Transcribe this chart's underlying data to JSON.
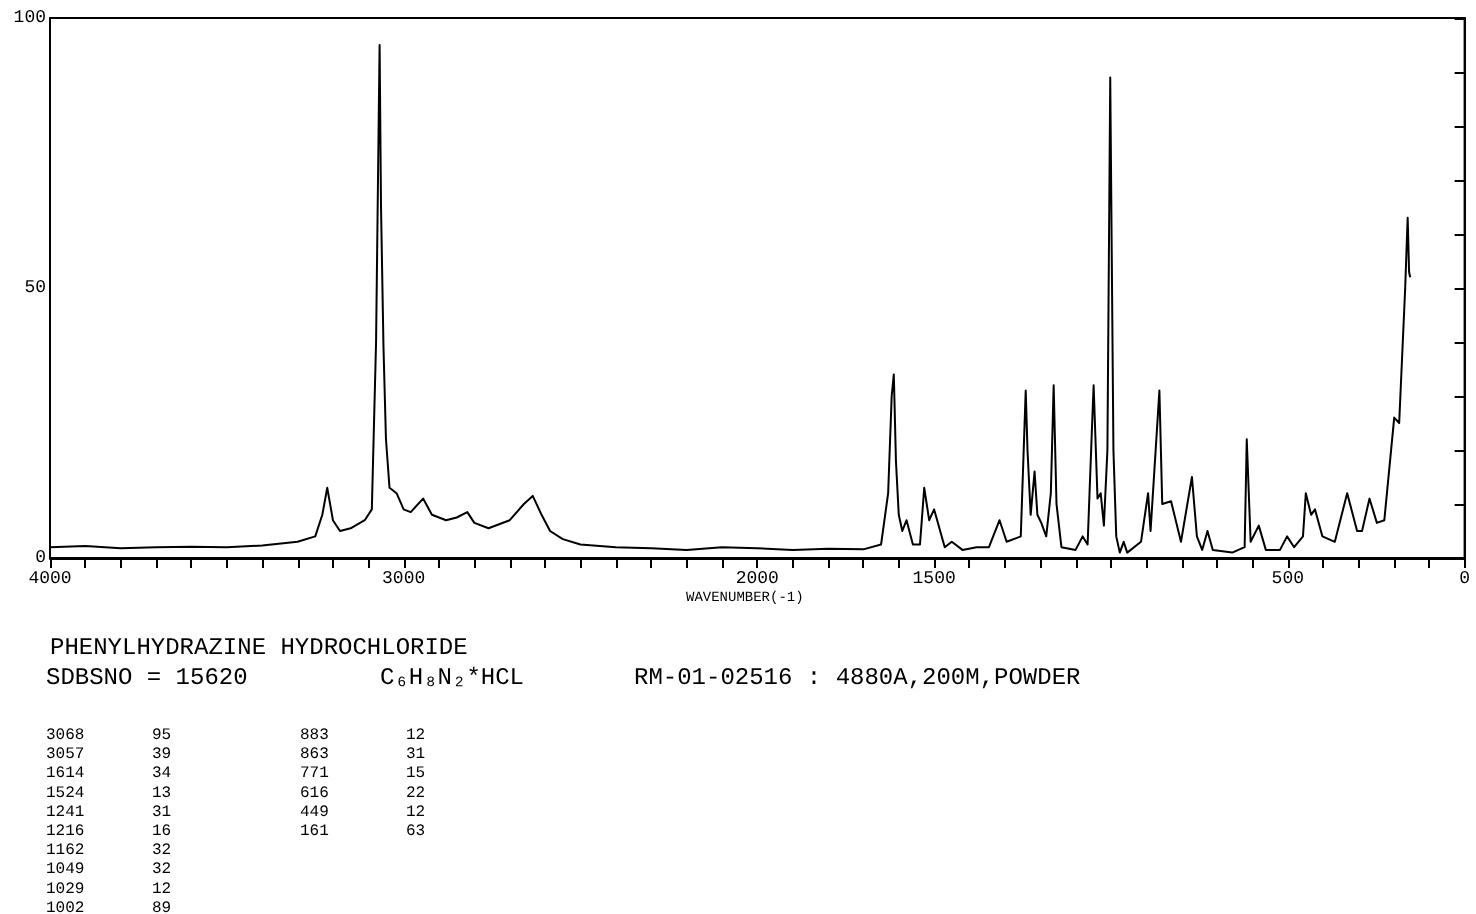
{
  "chart_data": {
    "type": "line",
    "title": "PHENYLHYDRAZINE HYDROCHLORIDE",
    "subtitle": "SDBSNO = 15620",
    "xlabel": "WAVENUMBER(-1)",
    "annotations": [
      "C₆H₈N₂*HCL",
      "RM-01-02516 : 4880A,200M,POWDER",
      "3068 95",
      "3057 39",
      "1614 34",
      "1524 13",
      "1241 31",
      "1216 16",
      "1162 32",
      "1049 32",
      "1029 12",
      "1002 89",
      "883 12",
      "863 31",
      "771 15",
      "616 22",
      "449 12",
      "161 63"
    ],
    "x": [
      4000,
      3900,
      3800,
      3700,
      3600,
      3500,
      3400,
      3300,
      3250,
      3230,
      3216,
      3200,
      3180,
      3150,
      3110,
      3090,
      3078,
      3068,
      3064,
      3057,
      3050,
      3040,
      3020,
      3000,
      2980,
      2945,
      2920,
      2880,
      2850,
      2820,
      2800,
      2760,
      2700,
      2660,
      2635,
      2610,
      2586,
      2550,
      2500,
      2400,
      2300,
      2200,
      2100,
      2000,
      1900,
      1800,
      1700,
      1650,
      1630,
      1620,
      1614,
      1608,
      1600,
      1590,
      1578,
      1560,
      1540,
      1528,
      1514,
      1500,
      1470,
      1450,
      1420,
      1380,
      1345,
      1315,
      1295,
      1255,
      1241,
      1236,
      1227,
      1216,
      1208,
      1197,
      1183,
      1170,
      1162,
      1154,
      1140,
      1100,
      1080,
      1066,
      1052,
      1049,
      1038,
      1029,
      1020,
      1010,
      1002,
      993,
      985,
      975,
      964,
      954,
      915,
      895,
      888,
      863,
      855,
      830,
      802,
      771,
      757,
      742,
      727,
      712,
      657,
      622,
      616,
      605,
      582,
      562,
      522,
      502,
      482,
      457,
      449,
      434,
      423,
      402,
      367,
      332,
      304,
      290,
      269,
      248,
      227,
      199,
      185,
      168,
      161,
      157,
      154
    ],
    "series": [
      {
        "color": "#000000",
        "values": [
          2,
          2.2,
          1.8,
          2,
          2.1,
          2,
          2.3,
          3,
          4,
          8,
          13,
          7,
          5,
          5.5,
          7,
          9,
          40,
          95,
          65,
          39,
          22,
          13,
          12,
          9,
          8.5,
          11,
          8,
          7,
          7.5,
          8.5,
          6.5,
          5.5,
          7,
          10,
          11.5,
          8,
          5,
          3.5,
          2.5,
          2,
          1.8,
          1.5,
          2,
          1.8,
          1.5,
          1.7,
          1.6,
          2.5,
          12,
          30,
          34,
          18,
          8,
          5,
          7,
          2.5,
          2.5,
          13,
          7,
          9,
          2,
          3,
          1.5,
          2,
          2,
          7,
          3,
          4,
          31,
          20,
          8,
          16,
          8,
          6.5,
          4,
          12,
          32,
          10,
          2,
          1.5,
          4,
          2.5,
          27,
          32,
          11,
          12,
          6,
          20,
          89,
          20,
          4,
          1,
          3,
          1,
          3,
          12,
          5,
          31,
          10,
          10.5,
          3,
          15,
          4,
          1.5,
          5,
          1.5,
          1,
          2,
          22,
          3,
          6,
          1.5,
          1.5,
          4,
          2,
          4,
          12,
          8,
          9,
          4,
          3,
          12,
          5,
          5,
          11,
          6.5,
          7,
          26,
          25,
          50,
          63,
          53,
          52
        ]
      }
    ],
    "xlim": [
      4000,
      0
    ],
    "ylim": [
      0,
      100
    ],
    "xticks": [
      4000,
      {
        "value": 3900,
        "label": null
      },
      {
        "value": 3800,
        "label": null
      },
      {
        "value": 3700,
        "label": null
      },
      {
        "value": 3600,
        "label": null
      },
      {
        "value": 3500,
        "label": null
      },
      {
        "value": 3400,
        "label": null
      },
      {
        "value": 3300,
        "label": null
      },
      {
        "value": 3200,
        "label": null
      },
      {
        "value": 3100,
        "label": null
      },
      3000,
      {
        "value": 2900,
        "label": null
      },
      {
        "value": 2800,
        "label": null
      },
      {
        "value": 2700,
        "label": null
      },
      {
        "value": 2600,
        "label": null
      },
      {
        "value": 2500,
        "label": null
      },
      {
        "value": 2400,
        "label": null
      },
      {
        "value": 2300,
        "label": null
      },
      {
        "value": 2200,
        "label": null
      },
      {
        "value": 2100,
        "label": null
      },
      2000,
      {
        "value": 1900,
        "label": null
      },
      {
        "value": 1800,
        "label": null
      },
      {
        "value": 1700,
        "label": null
      },
      {
        "value": 1600,
        "label": null
      },
      1500,
      {
        "value": 1400,
        "label": null
      },
      {
        "value": 1300,
        "label": null
      },
      {
        "value": 1200,
        "label": null
      },
      {
        "value": 1100,
        "label": null
      },
      {
        "value": 1000,
        "label": null
      },
      {
        "value": 900,
        "label": null
      },
      {
        "value": 800,
        "label": null
      },
      {
        "value": 700,
        "label": null
      },
      {
        "value": 600,
        "label": null
      },
      500,
      {
        "value": 400,
        "label": null
      },
      {
        "value": 300,
        "label": null
      },
      {
        "value": 200,
        "label": null
      },
      {
        "value": 100,
        "label": null
      },
      0
    ],
    "yticks": [
      0,
      {
        "value": 10,
        "label": null
      },
      {
        "value": 20,
        "label": null
      },
      {
        "value": 30,
        "label": null
      },
      {
        "value": 40,
        "label": null
      },
      50,
      {
        "value": 60,
        "label": null
      },
      {
        "value": 70,
        "label": null
      },
      {
        "value": 80,
        "label": null
      },
      {
        "value": 90,
        "label": null
      },
      100
    ]
  }
}
